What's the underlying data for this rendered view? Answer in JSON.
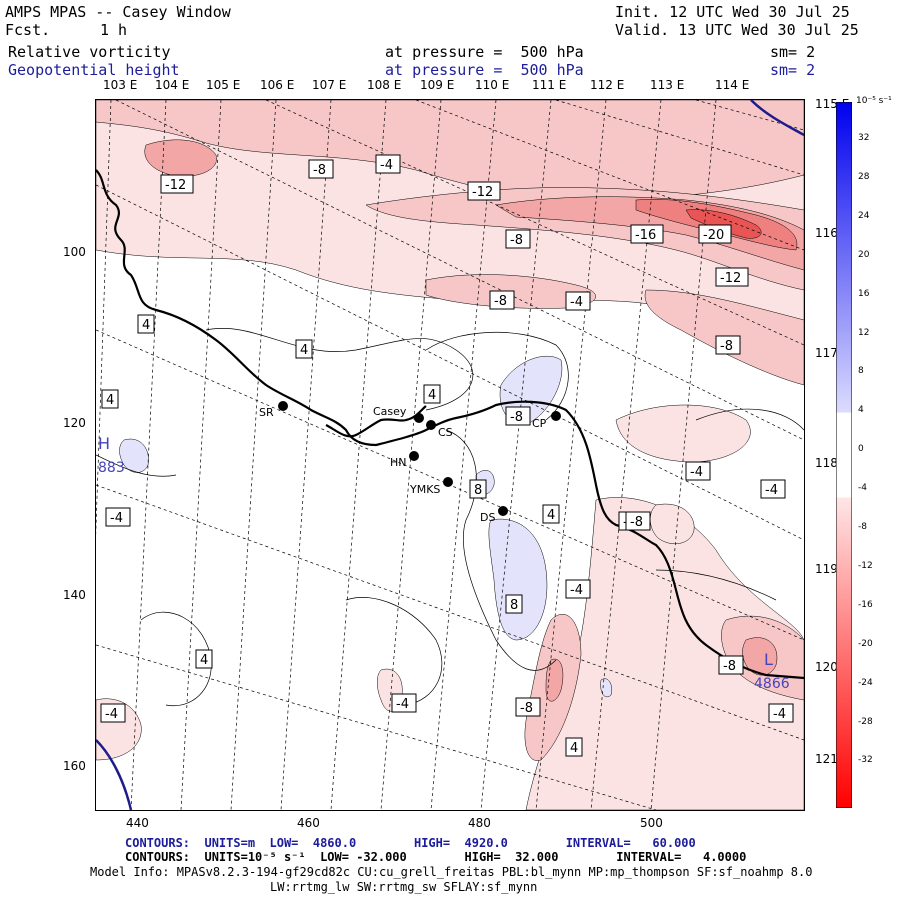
{
  "header": {
    "app_title": "AMPS MPAS -- Casey Window",
    "fcst_label": "Fcst.",
    "fcst_value": "1 h",
    "init": "Init. 12 UTC Wed 30 Jul 25",
    "valid": "Valid. 13 UTC Wed 30 Jul 25",
    "field1_name": "Relative vorticity",
    "field1_level": "at pressure =  500 hPa",
    "field1_sm": "sm= 2",
    "field2_name": "Geopotential height",
    "field2_level": "at pressure =  500 hPa",
    "field2_sm": "sm= 2"
  },
  "axes": {
    "top_lon_labels": [
      "103 E",
      "104 E",
      "105 E",
      "106 E",
      "107 E",
      "108 E",
      "109 E",
      "110 E",
      "111 E",
      "112 E",
      "113 E",
      "114 E"
    ],
    "right_lon_labels": [
      "115 E",
      "116 E",
      "117 E",
      "118 E",
      "119 E",
      "120 E",
      "121 E"
    ],
    "left_y_ticks": [
      "100",
      "120",
      "140",
      "160"
    ],
    "bottom_x_ticks": [
      "440",
      "460",
      "480",
      "500"
    ]
  },
  "stations": [
    {
      "id": "SR",
      "label": "SR"
    },
    {
      "id": "Casey",
      "label": "Casey"
    },
    {
      "id": "CS",
      "label": "CS"
    },
    {
      "id": "CP",
      "label": "CP"
    },
    {
      "id": "HN",
      "label": "HN"
    },
    {
      "id": "YMKS",
      "label": "YMKS"
    },
    {
      "id": "DS",
      "label": "DS"
    }
  ],
  "contour_labels": [
    "-12",
    "-8",
    "-4",
    "-12",
    "-8",
    "-16",
    "-20",
    "-4",
    "-12",
    "-8",
    "-8",
    "4",
    "4",
    "4",
    "-8",
    "-4",
    "-4",
    "8",
    "-8",
    "4",
    "-4",
    "-4",
    "4",
    "-8",
    "8",
    "4",
    "-4",
    "-8",
    "-4",
    "-4",
    "4",
    "-8"
  ],
  "extrema": {
    "high_symbol": "H",
    "high_value": "883",
    "low_symbol": "L",
    "low_value": "4866"
  },
  "colorbar": {
    "units": "10⁻⁵ s⁻¹",
    "labels": [
      "32",
      "28",
      "24",
      "20",
      "16",
      "12",
      "8",
      "4",
      "0",
      "-4",
      "-8",
      "-12",
      "-16",
      "-20",
      "-24",
      "-28",
      "-32"
    ],
    "colors": {
      "pos_strong": "#0000ee",
      "pos_weak": "#dcdcff",
      "neg_weak": "#ffe6e6",
      "neg_strong": "#ff0000"
    }
  },
  "footer": {
    "contours1": "CONTOURS:  UNITS=m  LOW=  4860.0        HIGH=  4920.0        INTERVAL=   60.000",
    "contours2": "CONTOURS:  UNITS=10⁻⁵ s⁻¹  LOW= -32.000        HIGH=  32.000        INTERVAL=   4.0000",
    "model_info": "Model Info: MPASv8.2.3-194-gf29cd82c CU:cu_grell_freitas PBL:bl_mynn MP:mp_thompson SF:sf_noahmp 8.0",
    "model_info2": "LW:rrtmg_lw SW:rrtmg_sw SFLAY:sf_mynn"
  },
  "map_colors": {
    "coast": "#000000",
    "neg1": "#fbe3e3",
    "neg2": "#f7c7c7",
    "neg3": "#f2a6a6",
    "neg4": "#ee8080",
    "neg5": "#e95555",
    "pos1": "#e3e3fb",
    "height_contour": "#1c1c8c"
  }
}
